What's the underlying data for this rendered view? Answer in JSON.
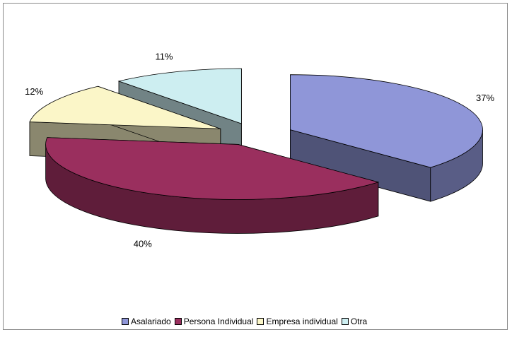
{
  "chart_data": {
    "type": "pie",
    "style": "3d-exploded",
    "title": "",
    "categories": [
      "Asalariado",
      "Persona Individual",
      "Empresa individual",
      "Otra"
    ],
    "values": [
      37,
      40,
      12,
      11
    ],
    "labels": [
      "37%",
      "40%",
      "12%",
      "11%"
    ],
    "colors": [
      "#8f96d8",
      "#9a2f5e",
      "#fbf6c8",
      "#cdeef1"
    ],
    "legend_position": "bottom"
  }
}
